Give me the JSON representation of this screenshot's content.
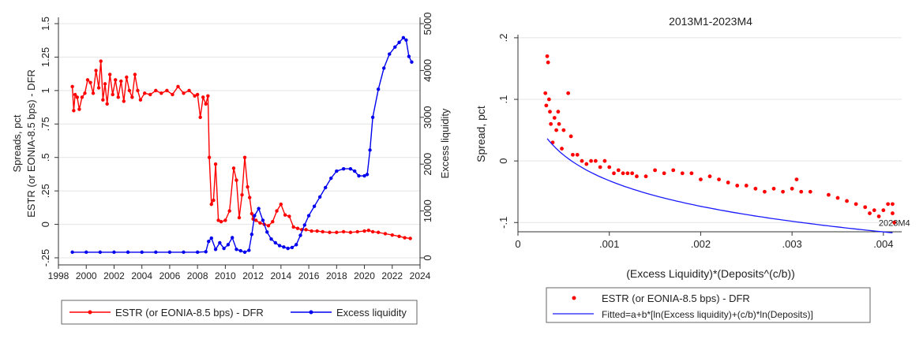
{
  "chart_data": [
    {
      "type": "line",
      "title": "",
      "xlabel": "",
      "ylabel": "Spreads, pct",
      "ylabel2": "ESTR (or EONIA-8.5 bps) - DFR",
      "y2label": "Excess liquidity",
      "xlim": [
        1998,
        2024
      ],
      "ylim": [
        -0.25,
        1.5
      ],
      "y2lim": [
        0,
        5000
      ],
      "x_ticks": [
        1998,
        2000,
        2002,
        2004,
        2006,
        2008,
        2010,
        2012,
        2014,
        2016,
        2018,
        2020,
        2022,
        2024
      ],
      "y_ticks": [
        -0.25,
        0,
        0.25,
        0.5,
        0.75,
        1,
        1.25,
        1.5
      ],
      "y_tick_labels": [
        "-.25",
        "0",
        ".25",
        ".5",
        ".75",
        "1",
        "1.25",
        "1.5"
      ],
      "y2_ticks": [
        0,
        1000,
        2000,
        3000,
        4000,
        5000
      ],
      "legend_position": "bottom",
      "series": [
        {
          "name": "ESTR (or EONIA-8.5 bps) - DFR",
          "axis": "left",
          "color": "#ff0000",
          "x": [
            1999.0,
            1999.1,
            1999.2,
            1999.35,
            1999.5,
            1999.7,
            1999.9,
            2000.1,
            2000.3,
            2000.5,
            2000.7,
            2000.9,
            2001.05,
            2001.2,
            2001.35,
            2001.5,
            2001.7,
            2001.9,
            2002.1,
            2002.3,
            2002.5,
            2002.7,
            2002.9,
            2003.1,
            2003.3,
            2003.5,
            2003.7,
            2003.9,
            2004.2,
            2004.6,
            2005.0,
            2005.4,
            2005.8,
            2006.2,
            2006.6,
            2007.0,
            2007.4,
            2007.8,
            2008.0,
            2008.2,
            2008.4,
            2008.6,
            2008.75,
            2008.85,
            2009.0,
            2009.15,
            2009.3,
            2009.5,
            2009.7,
            2010.0,
            2010.3,
            2010.6,
            2010.8,
            2011.0,
            2011.2,
            2011.4,
            2011.6,
            2011.75,
            2011.9,
            2012.0,
            2012.2,
            2012.5,
            2012.8,
            2013.1,
            2013.4,
            2013.7,
            2014.0,
            2014.3,
            2014.6,
            2014.9,
            2015.2,
            2015.5,
            2015.8,
            2016.2,
            2016.6,
            2017.0,
            2017.5,
            2018.0,
            2018.5,
            2019.0,
            2019.5,
            2020.0,
            2020.3,
            2020.6,
            2021.0,
            2021.5,
            2022.0,
            2022.5,
            2022.9,
            2023.3
          ],
          "y": [
            1.03,
            0.85,
            0.97,
            0.95,
            0.86,
            0.95,
            0.98,
            1.08,
            1.06,
            0.98,
            1.15,
            1.02,
            1.22,
            0.93,
            1.05,
            0.9,
            1.12,
            0.97,
            1.08,
            0.95,
            1.07,
            0.92,
            1.1,
            1.0,
            0.95,
            1.12,
            1.0,
            0.93,
            0.98,
            0.97,
            1.0,
            0.98,
            1.0,
            0.97,
            1.03,
            0.98,
            1.0,
            0.96,
            0.97,
            0.8,
            0.95,
            0.9,
            0.96,
            0.5,
            0.15,
            0.18,
            0.45,
            0.03,
            0.02,
            0.03,
            0.1,
            0.42,
            0.33,
            0.05,
            0.22,
            0.5,
            0.28,
            0.2,
            0.08,
            0.04,
            0.03,
            0.01,
            0.0,
            -0.01,
            0.02,
            0.1,
            0.15,
            0.07,
            0.06,
            -0.02,
            -0.03,
            -0.04,
            -0.04,
            -0.05,
            -0.05,
            -0.055,
            -0.06,
            -0.06,
            -0.055,
            -0.06,
            -0.055,
            -0.05,
            -0.045,
            -0.055,
            -0.06,
            -0.07,
            -0.08,
            -0.09,
            -0.1,
            -0.105
          ]
        },
        {
          "name": "Excess liquidity",
          "axis": "right",
          "color": "#0000ee",
          "x": [
            1999.0,
            2000.0,
            2001.0,
            2002.0,
            2003.0,
            2004.0,
            2005.0,
            2006.0,
            2007.0,
            2008.0,
            2008.6,
            2008.8,
            2009.0,
            2009.3,
            2009.6,
            2009.9,
            2010.2,
            2010.5,
            2010.8,
            2011.1,
            2011.4,
            2011.7,
            2011.9,
            2012.1,
            2012.4,
            2012.7,
            2013.0,
            2013.3,
            2013.6,
            2013.9,
            2014.2,
            2014.5,
            2014.8,
            2015.1,
            2015.4,
            2015.7,
            2016.0,
            2016.4,
            2016.8,
            2017.2,
            2017.6,
            2018.0,
            2018.5,
            2019.0,
            2019.3,
            2019.6,
            2020.0,
            2020.2,
            2020.4,
            2020.6,
            2021.0,
            2021.4,
            2021.8,
            2022.2,
            2022.5,
            2022.8,
            2023.0,
            2023.2,
            2023.4
          ],
          "y": [
            120,
            120,
            120,
            120,
            120,
            120,
            120,
            120,
            120,
            120,
            130,
            350,
            420,
            180,
            320,
            200,
            280,
            430,
            180,
            150,
            120,
            160,
            500,
            900,
            1050,
            800,
            550,
            400,
            320,
            260,
            230,
            200,
            220,
            280,
            480,
            700,
            900,
            1100,
            1300,
            1500,
            1700,
            1850,
            1900,
            1900,
            1850,
            1750,
            1750,
            1780,
            2300,
            3000,
            3600,
            4050,
            4350,
            4500,
            4600,
            4700,
            4650,
            4300,
            4180
          ]
        }
      ]
    },
    {
      "type": "scatter",
      "title": "2013M1-2023M4",
      "xlabel": "(Excess Liquidity)*(Deposits^(c/b))",
      "ylabel": "Spread, pct",
      "xlim": [
        0,
        0.0042
      ],
      "ylim": [
        -0.115,
        0.205
      ],
      "x_ticks": [
        0,
        0.001,
        0.002,
        0.003,
        0.004
      ],
      "x_tick_labels": [
        "0",
        ".001",
        ".002",
        ".003",
        ".004"
      ],
      "y_ticks": [
        -0.1,
        0,
        0.1,
        0.2
      ],
      "y_tick_labels": [
        "-.1",
        "0",
        ".1",
        ".2"
      ],
      "annotations": [
        {
          "text": "2023M4",
          "x": 0.00412,
          "y": -0.1
        }
      ],
      "legend_position": "bottom",
      "series": [
        {
          "name": "ESTR (or EONIA-8.5 bps) - DFR",
          "color": "#ff0000",
          "x": [
            0.00032,
            0.00033,
            0.00034,
            0.0003,
            0.00031,
            0.00035,
            0.00036,
            0.00038,
            0.0004,
            0.00042,
            0.00044,
            0.00045,
            0.00048,
            0.0005,
            0.00055,
            0.00058,
            0.0006,
            0.00065,
            0.0007,
            0.00075,
            0.0008,
            0.00085,
            0.0009,
            0.00095,
            0.001,
            0.00105,
            0.0011,
            0.00115,
            0.0012,
            0.00125,
            0.0013,
            0.0014,
            0.0015,
            0.0016,
            0.0017,
            0.0018,
            0.0019,
            0.002,
            0.0021,
            0.0022,
            0.0023,
            0.0024,
            0.0025,
            0.0026,
            0.0027,
            0.0028,
            0.0029,
            0.003,
            0.00305,
            0.0031,
            0.0032,
            0.0034,
            0.0035,
            0.0036,
            0.0037,
            0.0038,
            0.00385,
            0.0039,
            0.00395,
            0.004,
            0.00405,
            0.0041,
            0.0041,
            0.00412
          ],
          "y": [
            0.17,
            0.16,
            0.1,
            0.11,
            0.09,
            0.08,
            0.06,
            0.03,
            0.07,
            0.05,
            0.08,
            0.06,
            0.02,
            0.05,
            0.11,
            0.04,
            0.01,
            0.01,
            0.0,
            -0.005,
            0.0,
            0.0,
            -0.01,
            0.0,
            -0.01,
            -0.02,
            -0.015,
            -0.02,
            -0.02,
            -0.02,
            -0.025,
            -0.025,
            -0.015,
            -0.02,
            -0.015,
            -0.02,
            -0.02,
            -0.03,
            -0.025,
            -0.03,
            -0.035,
            -0.04,
            -0.04,
            -0.045,
            -0.05,
            -0.045,
            -0.05,
            -0.045,
            -0.03,
            -0.05,
            -0.05,
            -0.055,
            -0.06,
            -0.065,
            -0.07,
            -0.075,
            -0.085,
            -0.08,
            -0.09,
            -0.08,
            -0.07,
            -0.085,
            -0.07,
            -0.1
          ]
        },
        {
          "name": "Fitted=a+b*[ln(Excess liquidity)+(c/b)*ln(Deposits)]",
          "color": "#1a1aff",
          "fit": {
            "a": -0.4465,
            "b": -0.06,
            "x_from": 0.00032,
            "x_to": 0.0041
          }
        }
      ]
    }
  ]
}
